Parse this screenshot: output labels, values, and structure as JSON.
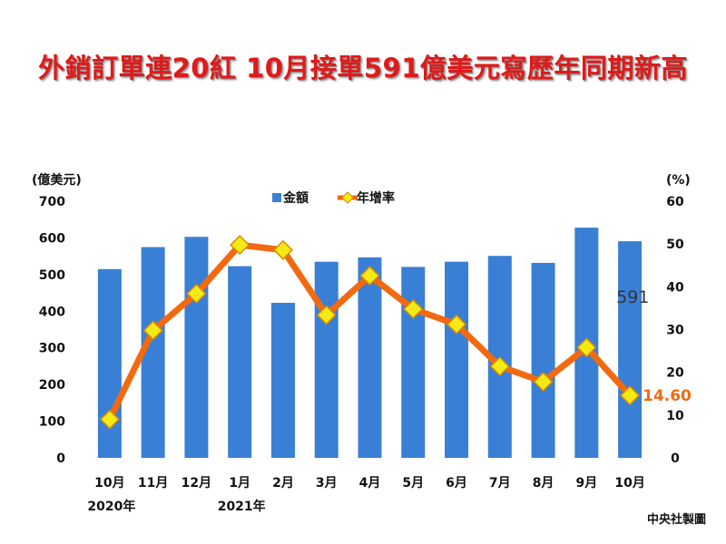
{
  "title": "外銷訂單連20紅 10月接單591億美元寫歷年同期新高",
  "credit": "中央社製圖",
  "colors": {
    "bar": "#3a7fd6",
    "line": "#f26a10",
    "marker": "#f5e916",
    "markerStroke": "#d98a00",
    "title": "#e01a1a"
  },
  "chart_data": {
    "type": "bar+line",
    "categories": [
      "10月",
      "11月",
      "12月",
      "1月",
      "2月",
      "3月",
      "4月",
      "5月",
      "6月",
      "7月",
      "8月",
      "9月",
      "10月"
    ],
    "year_labels": [
      {
        "index": 0,
        "label": "2020年"
      },
      {
        "index": 3,
        "label": "2021年"
      }
    ],
    "left_axis": {
      "label": "(億美元)",
      "ylim": [
        0,
        700
      ],
      "ticks": [
        0,
        100,
        200,
        300,
        400,
        500,
        600,
        700
      ]
    },
    "right_axis": {
      "label": "(%)",
      "ylim": [
        0,
        60
      ],
      "ticks": [
        0,
        10,
        20,
        30,
        40,
        50,
        60
      ]
    },
    "series": [
      {
        "name": "金額",
        "type": "bar",
        "axis": "left",
        "values": [
          515,
          575,
          603,
          523,
          423,
          535,
          547,
          521,
          535,
          551,
          532,
          628,
          591
        ]
      },
      {
        "name": "年增率",
        "type": "line",
        "axis": "right",
        "values": [
          9,
          29.8,
          38.4,
          49.8,
          48.6,
          33.4,
          42.6,
          34.8,
          31.2,
          21.4,
          17.8,
          25.8,
          14.6
        ]
      }
    ],
    "annotations": [
      {
        "series": "金額",
        "index": 12,
        "text": "591"
      },
      {
        "series": "年增率",
        "index": 12,
        "text": "14.60"
      }
    ],
    "legend_position": "top-left"
  }
}
